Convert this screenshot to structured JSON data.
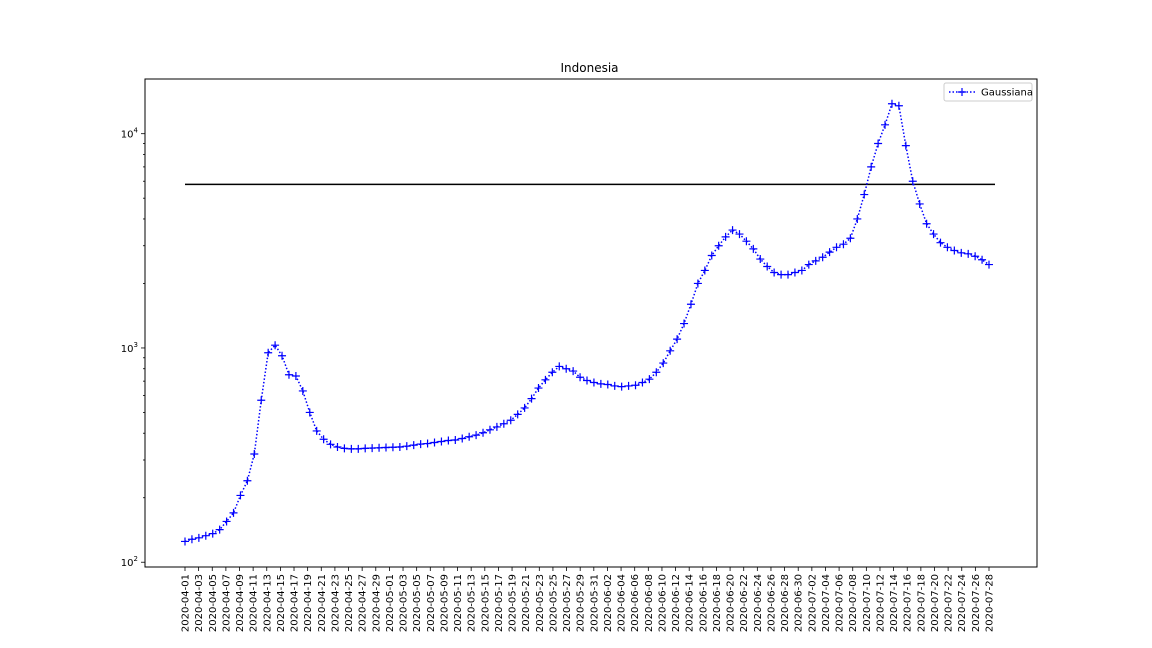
{
  "chart_data": {
    "type": "line",
    "title": "Indonesia",
    "xlabel": "",
    "ylabel": "",
    "yscale": "log",
    "ylim": [
      95,
      18000
    ],
    "y_tick_labels": [
      {
        "value": 100,
        "base": "10",
        "exp": "2"
      },
      {
        "value": 1000,
        "base": "10",
        "exp": "3"
      },
      {
        "value": 10000,
        "base": "10",
        "exp": "4"
      }
    ],
    "x_tick_labels": [
      "2020-04-01",
      "2020-04-03",
      "2020-04-05",
      "2020-04-07",
      "2020-04-09",
      "2020-04-11",
      "2020-04-13",
      "2020-04-15",
      "2020-04-17",
      "2020-04-19",
      "2020-04-21",
      "2020-04-23",
      "2020-04-25",
      "2020-04-27",
      "2020-04-29",
      "2020-05-01",
      "2020-05-03",
      "2020-05-05",
      "2020-05-07",
      "2020-05-09",
      "2020-05-11",
      "2020-05-13",
      "2020-05-15",
      "2020-05-17",
      "2020-05-19",
      "2020-05-21",
      "2020-05-23",
      "2020-05-25",
      "2020-05-27",
      "2020-05-29",
      "2020-05-31",
      "2020-06-02",
      "2020-06-04",
      "2020-06-06",
      "2020-06-08",
      "2020-06-10",
      "2020-06-12",
      "2020-06-14",
      "2020-06-16",
      "2020-06-18",
      "2020-06-20",
      "2020-06-22",
      "2020-06-24",
      "2020-06-26",
      "2020-06-28",
      "2020-06-30",
      "2020-07-02",
      "2020-07-04",
      "2020-07-06",
      "2020-07-08",
      "2020-07-10",
      "2020-07-12",
      "2020-07-14",
      "2020-07-16",
      "2020-07-18",
      "2020-07-20",
      "2020-07-22",
      "2020-07-24",
      "2020-07-26",
      "2020-07-28"
    ],
    "series": [
      {
        "name": "Gaussiana",
        "color": "#0000ff",
        "line_style": "dotted",
        "marker": "+",
        "values": [
          125,
          128,
          130,
          133,
          136,
          142,
          155,
          170,
          205,
          240,
          320,
          570,
          950,
          1030,
          920,
          750,
          740,
          630,
          500,
          410,
          375,
          355,
          345,
          340,
          338,
          338,
          340,
          341,
          342,
          343,
          344,
          345,
          348,
          352,
          356,
          358,
          362,
          366,
          370,
          372,
          378,
          385,
          392,
          402,
          415,
          428,
          443,
          460,
          490,
          525,
          580,
          650,
          710,
          770,
          820,
          800,
          780,
          730,
          705,
          690,
          680,
          675,
          665,
          660,
          665,
          670,
          690,
          715,
          770,
          850,
          970,
          1100,
          1300,
          1600,
          2000,
          2300,
          2700,
          3000,
          3300,
          3550,
          3400,
          3150,
          2900,
          2600,
          2400,
          2250,
          2200,
          2200,
          2250,
          2300,
          2450,
          2550,
          2650,
          2800,
          2950,
          3050,
          3250,
          4000,
          5200,
          7000,
          9000,
          11000,
          13800,
          13500,
          8800,
          6000,
          4700,
          3800,
          3400,
          3100,
          2950,
          2850,
          2780,
          2750,
          2680,
          2580,
          2450
        ]
      },
      {
        "name": "",
        "color": "#000000",
        "line_style": "solid",
        "values": [
          5800,
          5800
        ]
      }
    ],
    "legend": {
      "entries": [
        "Gaussiana"
      ],
      "placement": "upper-right"
    },
    "grid": false
  }
}
